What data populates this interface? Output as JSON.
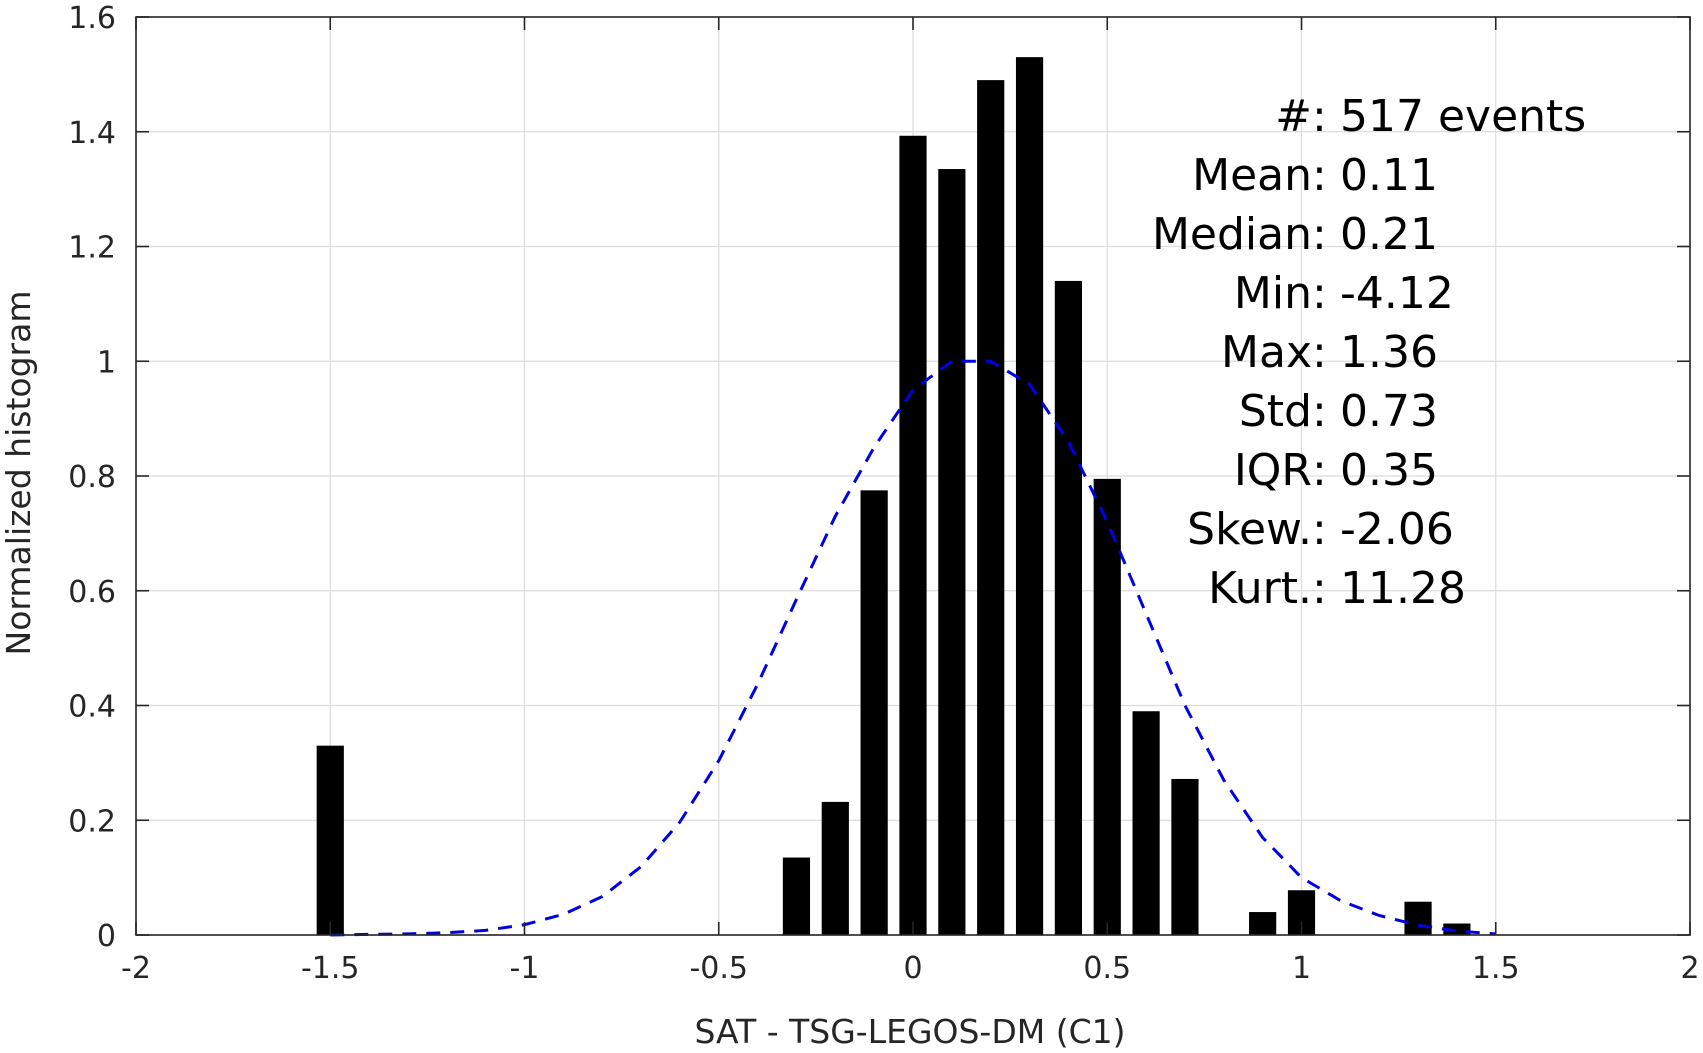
{
  "chart_data": {
    "type": "bar",
    "xlabel": "SAT - TSG-LEGOS-DM (C1)",
    "ylabel": "Normalized histogram",
    "xlim": [
      -2,
      2
    ],
    "ylim": [
      0,
      1.6
    ],
    "xticks": [
      -2,
      -1.5,
      -1,
      -0.5,
      0,
      0.5,
      1,
      1.5,
      2
    ],
    "xtick_labels": [
      "-2",
      "-1.5",
      "-1",
      "-0.5",
      "0",
      "0.5",
      "1",
      "1.5",
      "2"
    ],
    "yticks": [
      0,
      0.2,
      0.4,
      0.6,
      0.8,
      1,
      1.2,
      1.4,
      1.6
    ],
    "ytick_labels": [
      "0",
      "0.2",
      "0.4",
      "0.6",
      "0.8",
      "1",
      "1.2",
      "1.4",
      "1.6"
    ],
    "grid": true,
    "bar_color": "#000000",
    "bar_width": 0.07,
    "bars": [
      {
        "x": -1.5,
        "y": 0.33
      },
      {
        "x": -0.3,
        "y": 0.135
      },
      {
        "x": -0.2,
        "y": 0.232
      },
      {
        "x": -0.1,
        "y": 0.775
      },
      {
        "x": 0.0,
        "y": 1.393
      },
      {
        "x": 0.1,
        "y": 1.335
      },
      {
        "x": 0.2,
        "y": 1.49
      },
      {
        "x": 0.3,
        "y": 1.53
      },
      {
        "x": 0.4,
        "y": 1.14
      },
      {
        "x": 0.5,
        "y": 0.795
      },
      {
        "x": 0.6,
        "y": 0.39
      },
      {
        "x": 0.7,
        "y": 0.272
      },
      {
        "x": 0.9,
        "y": 0.04
      },
      {
        "x": 1.0,
        "y": 0.078
      },
      {
        "x": 1.3,
        "y": 0.058
      },
      {
        "x": 1.4,
        "y": 0.02
      }
    ],
    "fit_curve": {
      "style": "dashed",
      "color": "#0000e6",
      "x": [
        -1.5,
        -1.4,
        -1.3,
        -1.2,
        -1.1,
        -1.0,
        -0.9,
        -0.8,
        -0.7,
        -0.6,
        -0.5,
        -0.4,
        -0.3,
        -0.2,
        -0.1,
        0.0,
        0.1,
        0.2,
        0.3,
        0.4,
        0.5,
        0.6,
        0.7,
        0.8,
        0.9,
        1.0,
        1.1,
        1.2,
        1.3,
        1.4,
        1.5
      ],
      "y": [
        0.0,
        0.001,
        0.002,
        0.004,
        0.008,
        0.018,
        0.036,
        0.067,
        0.119,
        0.197,
        0.304,
        0.437,
        0.585,
        0.73,
        0.85,
        0.95,
        1.0,
        1.0,
        0.96,
        0.86,
        0.72,
        0.56,
        0.4,
        0.27,
        0.17,
        0.1,
        0.06,
        0.034,
        0.017,
        0.007,
        0.002
      ]
    },
    "stats": {
      "lines": [
        {
          "label": "#  ",
          "value": "517 events"
        },
        {
          "label": "Mean ",
          "value": "0.11"
        },
        {
          "label": "Median ",
          "value": "0.21"
        },
        {
          "label": "Min ",
          "value": "-4.12"
        },
        {
          "label": "Max ",
          "value": "1.36"
        },
        {
          "label": "Std ",
          "value": "0.73"
        },
        {
          "label": "IQR ",
          "value": "0.35"
        },
        {
          "label": "Skew. ",
          "value": "-2.06"
        },
        {
          "label": "Kurt. ",
          "value": "11.28"
        }
      ]
    }
  }
}
